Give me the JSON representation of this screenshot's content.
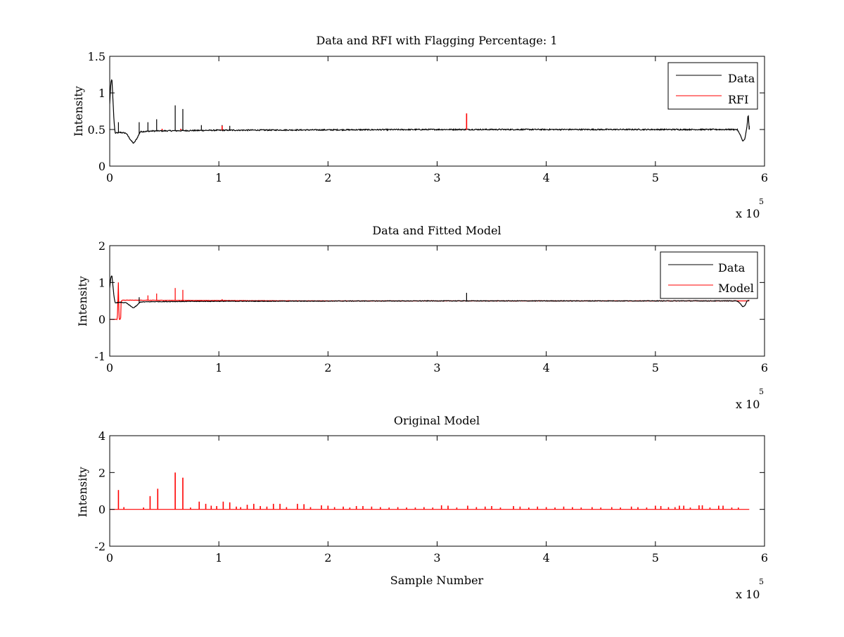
{
  "figure": {
    "background": "#ffffff",
    "colors": {
      "data": "#000000",
      "rfi": "#ff0000",
      "model": "#ff0000",
      "axes": "#000000"
    }
  },
  "chart_data": [
    {
      "id": "panel1",
      "type": "line",
      "title": "Data and RFI with Flagging Percentage: 1",
      "xlabel": "",
      "ylabel": "Intensity",
      "xlim": [
        0,
        6
      ],
      "ylim": [
        0,
        1.5
      ],
      "x_ticks": [
        "0",
        "1",
        "2",
        "3",
        "4",
        "5",
        "6"
      ],
      "y_ticks": [
        "0",
        "0.5",
        "1",
        "1.5"
      ],
      "x_multiplier": {
        "base": "x 10",
        "exponent": "5"
      },
      "legend": {
        "position": "top-right",
        "entries": [
          "Data",
          "RFI"
        ]
      },
      "grid": false,
      "series": [
        {
          "name": "Data",
          "color": "#000000",
          "baseline": 0.49,
          "noise": 0.008,
          "anchors": [
            [
              0,
              0.85
            ],
            [
              0.01,
              1.13
            ],
            [
              0.02,
              1.2
            ],
            [
              0.03,
              0.9
            ],
            [
              0.04,
              0.6
            ],
            [
              0.05,
              0.45
            ],
            [
              0.1,
              0.46
            ],
            [
              0.15,
              0.45
            ],
            [
              0.2,
              0.34
            ],
            [
              0.22,
              0.31
            ],
            [
              0.25,
              0.38
            ],
            [
              0.28,
              0.47
            ],
            [
              0.4,
              0.48
            ],
            [
              1.0,
              0.49
            ],
            [
              3.0,
              0.5
            ],
            [
              5.75,
              0.5
            ],
            [
              5.78,
              0.42
            ],
            [
              5.8,
              0.34
            ],
            [
              5.82,
              0.37
            ],
            [
              5.84,
              0.55
            ],
            [
              5.85,
              0.72
            ],
            [
              5.86,
              0.5
            ]
          ],
          "spikes": [
            [
              0.08,
              0.6
            ],
            [
              0.27,
              0.6
            ],
            [
              0.35,
              0.6
            ],
            [
              0.43,
              0.64
            ],
            [
              0.6,
              0.83
            ],
            [
              0.67,
              0.78
            ],
            [
              0.84,
              0.56
            ],
            [
              1.03,
              0.56
            ],
            [
              1.1,
              0.55
            ],
            [
              5.86,
              0.55
            ]
          ],
          "x_end": 5.86
        },
        {
          "name": "RFI",
          "color": "#ff0000",
          "spikes": [
            [
              0.48,
              0.51
            ],
            [
              0.65,
              0.51
            ],
            [
              1.03,
              0.55
            ],
            [
              3.27,
              0.72
            ]
          ]
        }
      ]
    },
    {
      "id": "panel2",
      "type": "line",
      "title": "Data and Fitted Model",
      "xlabel": "",
      "ylabel": "Intensity",
      "xlim": [
        0,
        6
      ],
      "ylim": [
        -1,
        2
      ],
      "x_ticks": [
        "0",
        "1",
        "2",
        "3",
        "4",
        "5",
        "6"
      ],
      "y_ticks": [
        "-1",
        "0",
        "1",
        "2"
      ],
      "x_multiplier": {
        "base": "x 10",
        "exponent": "5"
      },
      "legend": {
        "position": "top-right",
        "entries": [
          "Data",
          "Model"
        ]
      },
      "grid": false,
      "series": [
        {
          "name": "Model",
          "color": "#ff0000",
          "baseline": 0.5,
          "noise": 0.004,
          "anchors": [
            [
              0.0,
              0.0
            ],
            [
              0.07,
              0.0
            ],
            [
              0.08,
              1.05
            ],
            [
              0.085,
              0.0
            ],
            [
              0.1,
              0.0
            ],
            [
              0.105,
              0.5
            ],
            [
              0.12,
              0.52
            ],
            [
              2.0,
              0.5
            ],
            [
              5.86,
              0.5
            ]
          ],
          "spikes": [
            [
              0.35,
              0.65
            ],
            [
              0.43,
              0.7
            ],
            [
              0.6,
              0.85
            ],
            [
              0.67,
              0.8
            ],
            [
              1.03,
              0.55
            ]
          ],
          "x_end": 5.86
        },
        {
          "name": "Data",
          "color": "#000000",
          "baseline": 0.49,
          "noise": 0.008,
          "anchors": [
            [
              0,
              0.85
            ],
            [
              0.01,
              1.13
            ],
            [
              0.02,
              1.2
            ],
            [
              0.03,
              0.9
            ],
            [
              0.04,
              0.6
            ],
            [
              0.05,
              0.45
            ],
            [
              0.1,
              0.46
            ],
            [
              0.15,
              0.45
            ],
            [
              0.2,
              0.34
            ],
            [
              0.22,
              0.31
            ],
            [
              0.25,
              0.38
            ],
            [
              0.28,
              0.47
            ],
            [
              0.4,
              0.48
            ],
            [
              1.0,
              0.49
            ],
            [
              3.0,
              0.5
            ],
            [
              5.75,
              0.5
            ],
            [
              5.78,
              0.42
            ],
            [
              5.8,
              0.34
            ],
            [
              5.82,
              0.37
            ],
            [
              5.84,
              0.5
            ],
            [
              5.86,
              0.52
            ]
          ],
          "spikes": [
            [
              0.27,
              0.6
            ],
            [
              3.27,
              0.72
            ]
          ],
          "x_end": 5.86
        }
      ]
    },
    {
      "id": "panel3",
      "type": "line",
      "title": "Original Model",
      "xlabel": "Sample Number",
      "ylabel": "Intensity",
      "xlim": [
        0,
        6
      ],
      "ylim": [
        -2,
        4
      ],
      "x_ticks": [
        "0",
        "1",
        "2",
        "3",
        "4",
        "5",
        "6"
      ],
      "y_ticks": [
        "-2",
        "0",
        "2",
        "4"
      ],
      "x_multiplier": {
        "base": "x 10",
        "exponent": "5"
      },
      "legend": null,
      "grid": false,
      "series": [
        {
          "name": "",
          "color": "#ff0000",
          "baseline": 0.0,
          "x_end": 5.86,
          "spikes": [
            [
              0.08,
              1.05
            ],
            [
              0.13,
              0.12
            ],
            [
              0.31,
              0.1
            ],
            [
              0.37,
              0.72
            ],
            [
              0.44,
              1.12
            ],
            [
              0.6,
              2.0
            ],
            [
              0.67,
              1.72
            ],
            [
              0.74,
              0.1
            ],
            [
              0.82,
              0.42
            ],
            [
              0.88,
              0.3
            ],
            [
              0.93,
              0.2
            ],
            [
              0.98,
              0.18
            ],
            [
              1.04,
              0.42
            ],
            [
              1.1,
              0.38
            ],
            [
              1.16,
              0.15
            ],
            [
              1.2,
              0.12
            ],
            [
              1.26,
              0.25
            ],
            [
              1.32,
              0.3
            ],
            [
              1.38,
              0.18
            ],
            [
              1.44,
              0.15
            ],
            [
              1.5,
              0.3
            ],
            [
              1.56,
              0.3
            ],
            [
              1.62,
              0.12
            ],
            [
              1.72,
              0.3
            ],
            [
              1.78,
              0.28
            ],
            [
              1.84,
              0.12
            ],
            [
              1.94,
              0.22
            ],
            [
              2.0,
              0.2
            ],
            [
              2.06,
              0.12
            ],
            [
              2.14,
              0.15
            ],
            [
              2.2,
              0.1
            ],
            [
              2.26,
              0.18
            ],
            [
              2.32,
              0.18
            ],
            [
              2.4,
              0.15
            ],
            [
              2.48,
              0.12
            ],
            [
              2.56,
              0.1
            ],
            [
              2.64,
              0.12
            ],
            [
              2.72,
              0.1
            ],
            [
              2.8,
              0.1
            ],
            [
              2.88,
              0.12
            ],
            [
              2.96,
              0.1
            ],
            [
              3.04,
              0.22
            ],
            [
              3.1,
              0.2
            ],
            [
              3.18,
              0.1
            ],
            [
              3.28,
              0.2
            ],
            [
              3.36,
              0.12
            ],
            [
              3.44,
              0.15
            ],
            [
              3.5,
              0.18
            ],
            [
              3.58,
              0.1
            ],
            [
              3.7,
              0.18
            ],
            [
              3.76,
              0.15
            ],
            [
              3.84,
              0.1
            ],
            [
              3.92,
              0.15
            ],
            [
              4.0,
              0.12
            ],
            [
              4.08,
              0.1
            ],
            [
              4.16,
              0.15
            ],
            [
              4.24,
              0.12
            ],
            [
              4.32,
              0.1
            ],
            [
              4.42,
              0.12
            ],
            [
              4.5,
              0.1
            ],
            [
              4.6,
              0.12
            ],
            [
              4.68,
              0.1
            ],
            [
              4.78,
              0.15
            ],
            [
              4.84,
              0.12
            ],
            [
              4.92,
              0.1
            ],
            [
              5.0,
              0.2
            ],
            [
              5.05,
              0.18
            ],
            [
              5.12,
              0.12
            ],
            [
              5.18,
              0.12
            ],
            [
              5.22,
              0.2
            ],
            [
              5.26,
              0.2
            ],
            [
              5.32,
              0.1
            ],
            [
              5.4,
              0.22
            ],
            [
              5.43,
              0.22
            ],
            [
              5.5,
              0.1
            ],
            [
              5.58,
              0.2
            ],
            [
              5.62,
              0.2
            ],
            [
              5.7,
              0.1
            ],
            [
              5.76,
              0.1
            ]
          ]
        }
      ]
    }
  ]
}
